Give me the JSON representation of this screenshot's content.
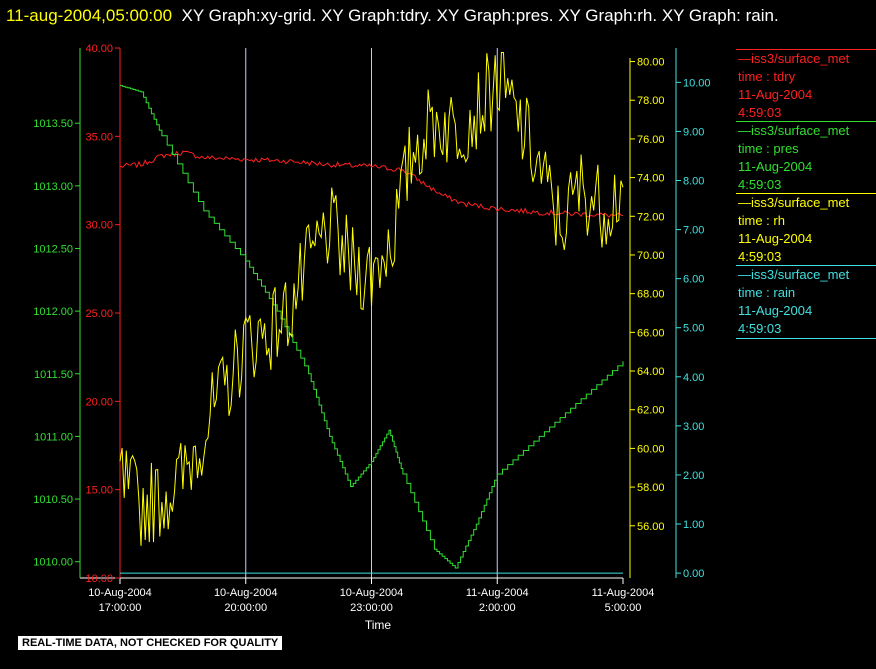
{
  "header": {
    "timestamp": "11-aug-2004,05:00:00",
    "graphs": "XY Graph:xy-grid.  XY Graph:tdry.  XY Graph:pres.  XY Graph:rh.  XY Graph: rain."
  },
  "footer_note": "REAL-TIME DATA, NOT CHECKED FOR QUALITY",
  "colors": {
    "tdry": "#ff2020",
    "pres": "#30e030",
    "rh": "#ffff00",
    "rain": "#40e0e0",
    "grid": "#c8c8ff"
  },
  "legend": [
    {
      "source": "iss3/surface_met",
      "field": "time : tdry",
      "date": "11-Aug-2004",
      "time": "4:59:03",
      "color": "#ff2020"
    },
    {
      "source": "iss3/surface_met",
      "field": "time : pres",
      "date": "11-Aug-2004",
      "time": "4:59:03",
      "color": "#30e030"
    },
    {
      "source": "iss3/surface_met",
      "field": "time : rh",
      "date": "11-Aug-2004",
      "time": "4:59:03",
      "color": "#ffff00"
    },
    {
      "source": "iss3/surface_met",
      "field": "time : rain",
      "date": "11-Aug-2004",
      "time": "4:59:03",
      "color": "#40e0e0"
    }
  ],
  "chart_data": {
    "type": "line",
    "title": "",
    "xlabel": "Time",
    "x_ticks": [
      {
        "date": "10-Aug-2004",
        "time": "17:00:00"
      },
      {
        "date": "10-Aug-2004",
        "time": "20:00:00"
      },
      {
        "date": "10-Aug-2004",
        "time": "23:00:00"
      },
      {
        "date": "11-Aug-2004",
        "time": "2:00:00"
      },
      {
        "date": "11-Aug-2004",
        "time": "5:00:00"
      }
    ],
    "xlim": [
      "2004-08-10T17:00:00",
      "2004-08-11T05:00:00"
    ],
    "grid": true,
    "axes": {
      "tdry": {
        "ticks": [
          "10.00",
          "15.00",
          "20.00",
          "25.00",
          "30.00",
          "35.00",
          "40.00"
        ],
        "range": [
          10,
          40
        ]
      },
      "pres": {
        "ticks": [
          "1010.00",
          "1010.50",
          "1011.00",
          "1011.50",
          "1012.00",
          "1012.50",
          "1013.00",
          "1013.50"
        ],
        "range": [
          1009.87,
          1014.1
        ]
      },
      "rh": {
        "ticks": [
          "56.00",
          "58.00",
          "60.00",
          "62.00",
          "64.00",
          "66.00",
          "68.00",
          "70.00",
          "72.00",
          "74.00",
          "76.00",
          "78.00",
          "80.00"
        ],
        "range": [
          53.3,
          80.7
        ]
      },
      "rain": {
        "ticks": [
          "0.00",
          "1.00",
          "2.00",
          "3.00",
          "4.00",
          "5.00",
          "6.00",
          "7.00",
          "8.00",
          "9.00",
          "10.00"
        ],
        "range": [
          -0.1,
          10.7
        ]
      }
    },
    "series": [
      {
        "name": "tdry",
        "x": [
          "2004-08-10T17:00:00",
          "2004-08-10T17:30:00",
          "2004-08-10T18:00:00",
          "2004-08-10T18:30:00",
          "2004-08-10T19:00:00",
          "2004-08-10T20:00:00",
          "2004-08-10T21:00:00",
          "2004-08-10T22:00:00",
          "2004-08-10T23:00:00",
          "2004-08-10T23:45:00",
          "2004-08-11T00:20:00",
          "2004-08-11T00:40:00",
          "2004-08-11T01:10:00",
          "2004-08-11T02:00:00",
          "2004-08-11T03:00:00",
          "2004-08-11T04:00:00",
          "2004-08-11T05:00:00"
        ],
        "values": [
          33.3,
          33.4,
          33.9,
          34.1,
          33.8,
          33.7,
          33.6,
          33.4,
          33.3,
          33.1,
          32.2,
          31.7,
          31.2,
          30.9,
          30.7,
          30.6,
          30.5
        ]
      },
      {
        "name": "pres",
        "x": [
          "2004-08-10T17:00:00",
          "2004-08-10T17:30:00",
          "2004-08-10T18:00:00",
          "2004-08-10T19:00:00",
          "2004-08-10T20:00:00",
          "2004-08-10T20:45:00",
          "2004-08-10T21:30:00",
          "2004-08-10T22:00:00",
          "2004-08-10T22:30:00",
          "2004-08-10T23:00:00",
          "2004-08-10T23:25:00",
          "2004-08-10T23:45:00",
          "2004-08-11T00:30:00",
          "2004-08-11T01:00:00",
          "2004-08-11T01:30:00",
          "2004-08-11T02:00:00",
          "2004-08-11T03:00:00",
          "2004-08-11T04:00:00",
          "2004-08-11T05:00:00"
        ],
        "values": [
          1013.8,
          1013.75,
          1013.4,
          1012.8,
          1012.4,
          1012.0,
          1011.5,
          1011.0,
          1010.6,
          1010.8,
          1011.05,
          1010.7,
          1010.1,
          1009.95,
          1010.3,
          1010.7,
          1011.0,
          1011.3,
          1011.6
        ]
      },
      {
        "name": "rh",
        "x": [
          "2004-08-10T17:00:00",
          "2004-08-10T17:30:00",
          "2004-08-10T18:00:00",
          "2004-08-10T18:30:00",
          "2004-08-10T19:00:00",
          "2004-08-10T19:30:00",
          "2004-08-10T20:00:00",
          "2004-08-10T20:30:00",
          "2004-08-10T21:00:00",
          "2004-08-10T21:30:00",
          "2004-08-10T22:00:00",
          "2004-08-10T22:30:00",
          "2004-08-10T23:00:00",
          "2004-08-10T23:30:00",
          "2004-08-11T00:00:00",
          "2004-08-11T00:30:00",
          "2004-08-11T01:00:00",
          "2004-08-11T01:30:00",
          "2004-08-11T02:00:00",
          "2004-08-11T02:30:00",
          "2004-08-11T03:00:00",
          "2004-08-11T03:30:00",
          "2004-08-11T04:00:00",
          "2004-08-11T04:30:00",
          "2004-08-11T05:00:00"
        ],
        "values": [
          58.5,
          57.0,
          57.5,
          58.5,
          61.0,
          63.0,
          65.5,
          66.0,
          67.0,
          69.5,
          71.5,
          69.5,
          69.0,
          71.0,
          75.5,
          77.0,
          76.5,
          77.5,
          79.0,
          77.0,
          74.5,
          71.5,
          73.5,
          72.5,
          73.5
        ]
      },
      {
        "name": "rain",
        "x": [
          "2004-08-10T17:00:00",
          "2004-08-11T05:00:00"
        ],
        "values": [
          0.0,
          0.0
        ]
      }
    ]
  }
}
